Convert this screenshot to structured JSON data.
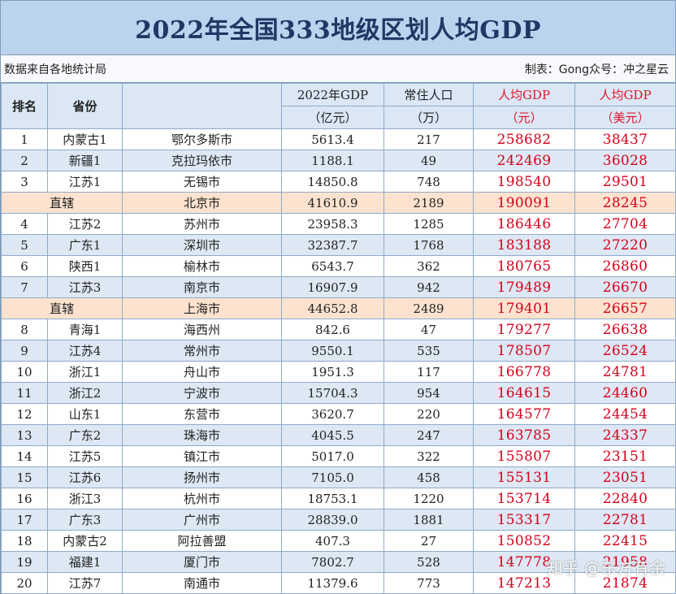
{
  "title": "2022年全国333地级区划人均GDP",
  "source_note": "数据来自各地统计局",
  "credit": "制表：Gong众号：冲之星云",
  "headers": {
    "rank": "排名",
    "province": "省份",
    "gdp_top": "2022年GDP",
    "gdp_bottom": "（亿元）",
    "pop_top": "常住人口",
    "pop_bottom": "（万）",
    "pc_cny_top": "人均GDP",
    "pc_cny_bottom": "（元）",
    "pc_usd_top": "人均GDP",
    "pc_usd_bottom": "（美元）"
  },
  "rows": [
    {
      "rank": "1",
      "province": "内蒙古1",
      "city": "鄂尔多斯市",
      "gdp": "5613.4",
      "pop": "217",
      "pc_cny": "258682",
      "pc_usd": "38437",
      "style": "plain"
    },
    {
      "rank": "2",
      "province": "新疆1",
      "city": "克拉玛依市",
      "gdp": "1188.1",
      "pop": "49",
      "pc_cny": "242469",
      "pc_usd": "36028",
      "style": "alt"
    },
    {
      "rank": "3",
      "province": "江苏1",
      "city": "无锡市",
      "gdp": "14850.8",
      "pop": "748",
      "pc_cny": "198540",
      "pc_usd": "29501",
      "style": "plain"
    },
    {
      "rank": "",
      "province": "直辖",
      "city": "北京市",
      "gdp": "41610.9",
      "pop": "2189",
      "pc_cny": "190091",
      "pc_usd": "28245",
      "style": "direct"
    },
    {
      "rank": "4",
      "province": "江苏2",
      "city": "苏州市",
      "gdp": "23958.3",
      "pop": "1285",
      "pc_cny": "186446",
      "pc_usd": "27704",
      "style": "plain"
    },
    {
      "rank": "5",
      "province": "广东1",
      "city": "深圳市",
      "gdp": "32387.7",
      "pop": "1768",
      "pc_cny": "183188",
      "pc_usd": "27220",
      "style": "alt"
    },
    {
      "rank": "6",
      "province": "陕西1",
      "city": "榆林市",
      "gdp": "6543.7",
      "pop": "362",
      "pc_cny": "180765",
      "pc_usd": "26860",
      "style": "plain"
    },
    {
      "rank": "7",
      "province": "江苏3",
      "city": "南京市",
      "gdp": "16907.9",
      "pop": "942",
      "pc_cny": "179489",
      "pc_usd": "26670",
      "style": "alt"
    },
    {
      "rank": "",
      "province": "直辖",
      "city": "上海市",
      "gdp": "44652.8",
      "pop": "2489",
      "pc_cny": "179401",
      "pc_usd": "26657",
      "style": "direct"
    },
    {
      "rank": "8",
      "province": "青海1",
      "city": "海西州",
      "gdp": "842.6",
      "pop": "47",
      "pc_cny": "179277",
      "pc_usd": "26638",
      "style": "plain"
    },
    {
      "rank": "9",
      "province": "江苏4",
      "city": "常州市",
      "gdp": "9550.1",
      "pop": "535",
      "pc_cny": "178507",
      "pc_usd": "26524",
      "style": "alt"
    },
    {
      "rank": "10",
      "province": "浙江1",
      "city": "舟山市",
      "gdp": "1951.3",
      "pop": "117",
      "pc_cny": "166778",
      "pc_usd": "24781",
      "style": "plain"
    },
    {
      "rank": "11",
      "province": "浙江2",
      "city": "宁波市",
      "gdp": "15704.3",
      "pop": "954",
      "pc_cny": "164615",
      "pc_usd": "24460",
      "style": "alt"
    },
    {
      "rank": "12",
      "province": "山东1",
      "city": "东营市",
      "gdp": "3620.7",
      "pop": "220",
      "pc_cny": "164577",
      "pc_usd": "24454",
      "style": "plain"
    },
    {
      "rank": "13",
      "province": "广东2",
      "city": "珠海市",
      "gdp": "4045.5",
      "pop": "247",
      "pc_cny": "163785",
      "pc_usd": "24337",
      "style": "alt"
    },
    {
      "rank": "14",
      "province": "江苏5",
      "city": "镇江市",
      "gdp": "5017.0",
      "pop": "322",
      "pc_cny": "155807",
      "pc_usd": "23151",
      "style": "plain"
    },
    {
      "rank": "15",
      "province": "江苏6",
      "city": "扬州市",
      "gdp": "7105.0",
      "pop": "458",
      "pc_cny": "155131",
      "pc_usd": "23051",
      "style": "alt"
    },
    {
      "rank": "16",
      "province": "浙江3",
      "city": "杭州市",
      "gdp": "18753.1",
      "pop": "1220",
      "pc_cny": "153714",
      "pc_usd": "22840",
      "style": "plain"
    },
    {
      "rank": "17",
      "province": "广东3",
      "city": "广州市",
      "gdp": "28839.0",
      "pop": "1881",
      "pc_cny": "153317",
      "pc_usd": "22781",
      "style": "alt"
    },
    {
      "rank": "18",
      "province": "内蒙古2",
      "city": "阿拉善盟",
      "gdp": "407.3",
      "pop": "27",
      "pc_cny": "150852",
      "pc_usd": "22415",
      "style": "plain"
    },
    {
      "rank": "19",
      "province": "福建1",
      "city": "厦门市",
      "gdp": "7802.7",
      "pop": "528",
      "pc_cny": "147778",
      "pc_usd": "21958",
      "style": "alt"
    },
    {
      "rank": "20",
      "province": "江苏7",
      "city": "南通市",
      "gdp": "11379.6",
      "pop": "773",
      "pc_cny": "147213",
      "pc_usd": "21874",
      "style": "plain"
    }
  ],
  "watermark": "知乎 @东方有余"
}
